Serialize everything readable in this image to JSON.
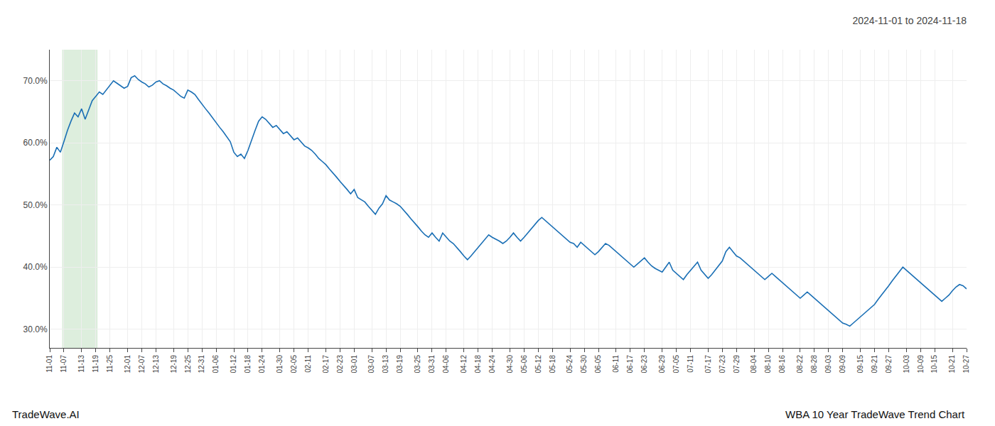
{
  "chart_data": {
    "type": "line",
    "title": "2024-11-01 to 2024-11-18",
    "annotations": [
      {
        "text": "TradeWave.AI",
        "position": "bottom left"
      },
      {
        "text": "WBA 10 Year TradeWave Trend Chart",
        "position": "bottom right"
      }
    ],
    "color": "#1a6fb5",
    "highlight": {
      "from": "11-07",
      "to": "11-19",
      "color": "#ddeedd"
    },
    "grid": true,
    "ylim": [
      27.0,
      75.0
    ],
    "yticks": [
      {
        "value": 30.0,
        "label": "30.0%"
      },
      {
        "value": 40.0,
        "label": "40.0%"
      },
      {
        "value": 50.0,
        "label": "50.0%"
      },
      {
        "value": 60.0,
        "label": "60.0%"
      },
      {
        "value": 70.0,
        "label": "70.0%"
      }
    ],
    "categories": [
      "11-01",
      null,
      null,
      null,
      "11-07",
      null,
      null,
      null,
      null,
      "11-13",
      null,
      null,
      null,
      "11-19",
      null,
      null,
      null,
      "11-25",
      null,
      null,
      null,
      null,
      "12-01",
      null,
      null,
      null,
      "12-07",
      null,
      null,
      null,
      "12-13",
      null,
      null,
      null,
      null,
      "12-19",
      null,
      null,
      null,
      "12-25",
      null,
      null,
      null,
      "12-31",
      null,
      null,
      null,
      "01-06",
      null,
      null,
      null,
      null,
      "01-12",
      null,
      null,
      null,
      "01-18",
      null,
      null,
      null,
      "01-24",
      null,
      null,
      null,
      null,
      "01-30",
      null,
      null,
      null,
      "02-05",
      null,
      null,
      null,
      "02-11",
      null,
      null,
      null,
      null,
      "02-17",
      null,
      null,
      null,
      "02-23",
      null,
      null,
      null,
      "03-01",
      null,
      null,
      null,
      null,
      "03-07",
      null,
      null,
      null,
      "03-13",
      null,
      null,
      null,
      "03-19",
      null,
      null,
      null,
      null,
      "03-25",
      null,
      null,
      null,
      "03-31",
      null,
      null,
      null,
      "04-06",
      null,
      null,
      null,
      null,
      "04-12",
      null,
      null,
      null,
      "04-18",
      null,
      null,
      null,
      "04-24",
      null,
      null,
      null,
      null,
      "04-30",
      null,
      null,
      null,
      "05-06",
      null,
      null,
      null,
      "05-12",
      null,
      null,
      null,
      "05-18",
      null,
      null,
      null,
      null,
      "05-24",
      null,
      null,
      null,
      "05-30",
      null,
      null,
      null,
      "06-05",
      null,
      null,
      null,
      null,
      "06-11",
      null,
      null,
      null,
      "06-17",
      null,
      null,
      null,
      "06-23",
      null,
      null,
      null,
      null,
      "06-29",
      null,
      null,
      null,
      "07-05",
      null,
      null,
      null,
      "07-11",
      null,
      null,
      null,
      null,
      "07-17",
      null,
      null,
      null,
      "07-23",
      null,
      null,
      null,
      "07-29",
      null,
      null,
      null,
      null,
      "08-04",
      null,
      null,
      null,
      "08-10",
      null,
      null,
      null,
      "08-16",
      null,
      null,
      null,
      null,
      "08-22",
      null,
      null,
      null,
      "08-28",
      null,
      null,
      null,
      "09-03",
      null,
      null,
      null,
      "09-09",
      null,
      null,
      null,
      null,
      "09-15",
      null,
      null,
      null,
      "09-21",
      null,
      null,
      null,
      "09-27",
      null,
      null,
      null,
      null,
      "10-03",
      null,
      null,
      null,
      "10-09",
      null,
      null,
      null,
      "10-15",
      null,
      null,
      null,
      null,
      "10-21",
      null,
      null,
      null,
      "10-27"
    ],
    "values": [
      57.2,
      57.8,
      59.3,
      58.5,
      60.2,
      62.0,
      63.5,
      64.8,
      64.2,
      65.5,
      63.8,
      65.2,
      66.8,
      67.5,
      68.2,
      67.8,
      68.5,
      69.2,
      70.0,
      69.6,
      69.2,
      68.8,
      69.1,
      70.5,
      70.8,
      70.2,
      69.8,
      69.5,
      69.0,
      69.3,
      69.8,
      70.0,
      69.5,
      69.2,
      68.8,
      68.5,
      68.0,
      67.5,
      67.2,
      68.5,
      68.2,
      67.8,
      67.0,
      66.2,
      65.5,
      64.8,
      64.0,
      63.2,
      62.5,
      61.8,
      61.0,
      60.2,
      58.5,
      57.8,
      58.2,
      57.5,
      58.8,
      60.5,
      62.0,
      63.5,
      64.2,
      63.8,
      63.2,
      62.5,
      62.8,
      62.2,
      61.5,
      61.8,
      61.2,
      60.5,
      60.8,
      60.2,
      59.5,
      59.2,
      58.8,
      58.2,
      57.5,
      57.0,
      56.5,
      55.8,
      55.2,
      54.5,
      53.8,
      53.2,
      52.5,
      51.8,
      52.5,
      51.2,
      50.8,
      50.5,
      49.8,
      49.2,
      48.5,
      49.5,
      50.2,
      51.5,
      50.8,
      50.5,
      50.2,
      49.8,
      49.2,
      48.5,
      47.8,
      47.2,
      46.5,
      45.8,
      45.2,
      44.8,
      45.5,
      44.8,
      44.2,
      45.5,
      44.8,
      44.2,
      43.8,
      43.2,
      42.5,
      41.8,
      41.2,
      41.8,
      42.5,
      43.2,
      43.8,
      44.5,
      45.2,
      44.8,
      44.5,
      44.2,
      43.8,
      44.2,
      44.8,
      45.5,
      44.8,
      44.2,
      44.8,
      45.5,
      46.2,
      46.8,
      47.5,
      48.0,
      47.5,
      47.0,
      46.5,
      46.0,
      45.5,
      45.0,
      44.5,
      44.0,
      43.8,
      43.2,
      44.0,
      43.5,
      43.0,
      42.5,
      42.0,
      42.5,
      43.2,
      43.8,
      43.5,
      43.0,
      42.5,
      42.0,
      41.5,
      41.0,
      40.5,
      40.0,
      40.5,
      41.0,
      41.5,
      40.8,
      40.2,
      39.8,
      39.5,
      39.2,
      40.0,
      40.8,
      39.5,
      39.0,
      38.5,
      38.0,
      38.8,
      39.5,
      40.2,
      40.8,
      39.5,
      38.8,
      38.2,
      38.8,
      39.5,
      40.2,
      41.0,
      42.5,
      43.2,
      42.5,
      41.8,
      41.5,
      41.0,
      40.5,
      40.0,
      39.5,
      39.0,
      38.5,
      38.0,
      38.5,
      39.0,
      38.5,
      38.0,
      37.5,
      37.0,
      36.5,
      36.0,
      35.5,
      35.0,
      35.5,
      36.0,
      35.5,
      35.0,
      34.5,
      34.0,
      33.5,
      33.0,
      32.5,
      32.0,
      31.5,
      31.0,
      30.8,
      30.5,
      31.0,
      31.5,
      32.0,
      32.5,
      33.0,
      33.5,
      34.0,
      34.8,
      35.5,
      36.2,
      37.0,
      37.8,
      38.5,
      39.2,
      40.0,
      39.5,
      39.0,
      38.5,
      38.0,
      37.5,
      37.0,
      36.5,
      36.0,
      35.5,
      35.0,
      34.5,
      35.0,
      35.5,
      36.2,
      36.8,
      37.2,
      37.0,
      36.5
    ]
  }
}
